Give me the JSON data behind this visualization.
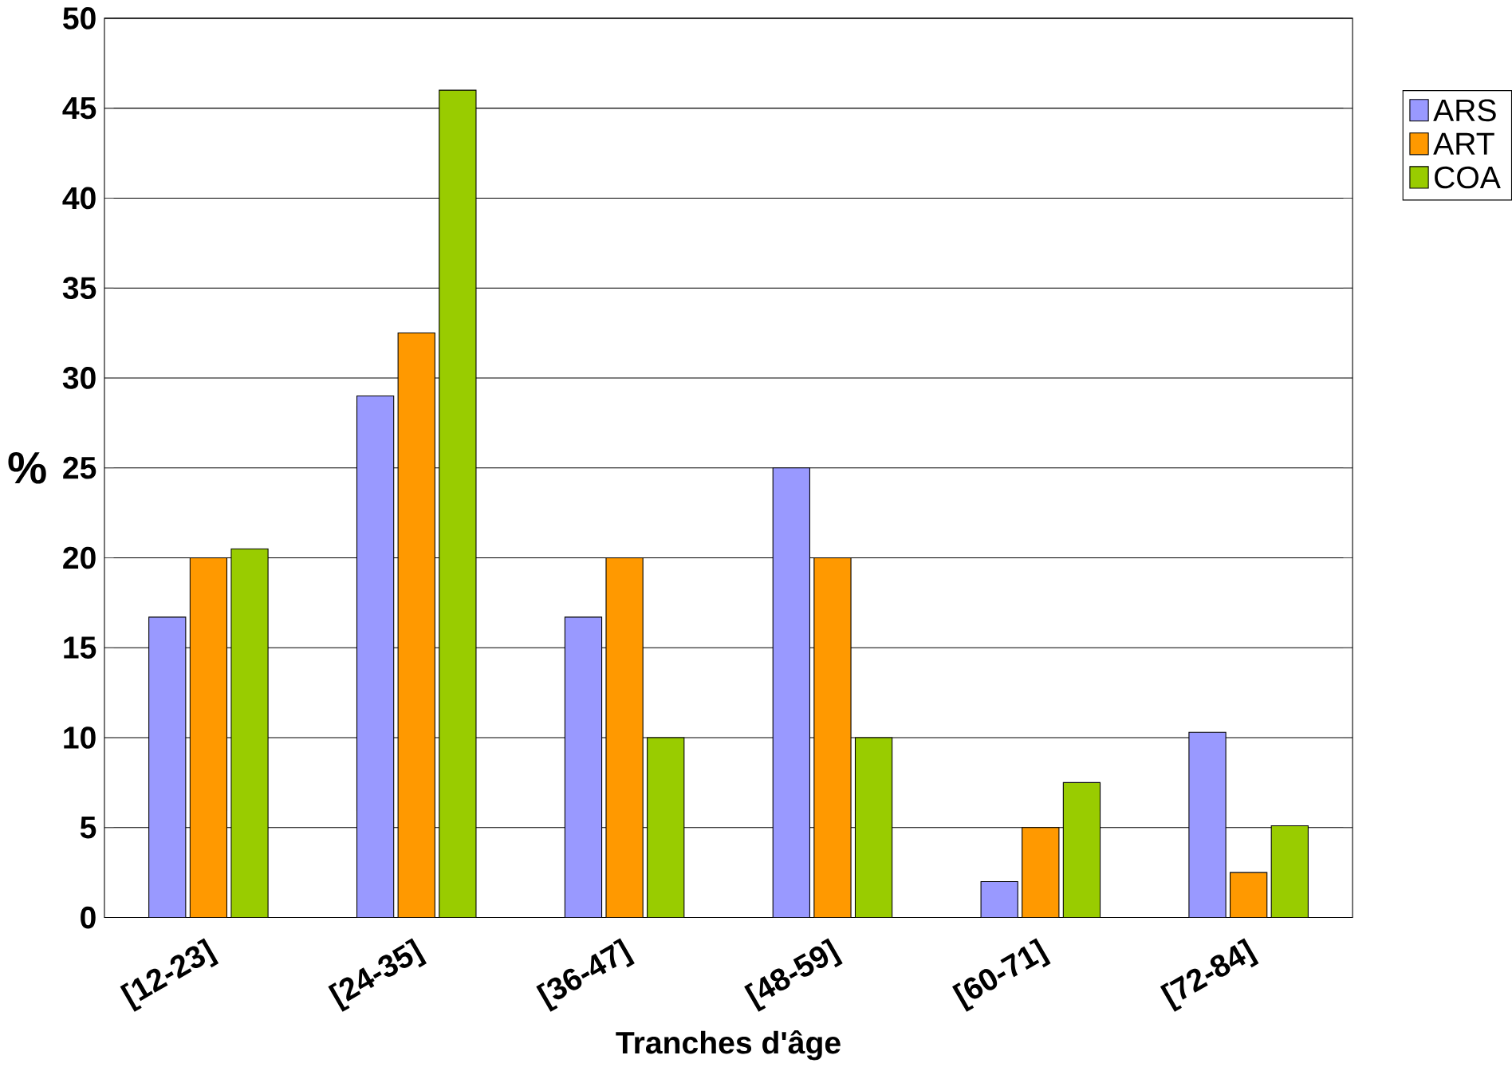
{
  "chart_data": {
    "type": "bar",
    "xlabel": "Tranches d'âge",
    "ylabel": "%",
    "categories": [
      "[12-23]",
      "[24-35]",
      "[36-47]",
      "[48-59]",
      "[60-71]",
      "[72-84]"
    ],
    "series": [
      {
        "name": "ARS",
        "color": "#9999ff",
        "values": [
          16.7,
          29,
          16.7,
          25,
          2,
          10.3
        ]
      },
      {
        "name": "ART",
        "color": "#ff9900",
        "values": [
          20,
          32.5,
          20,
          20,
          5,
          2.5
        ]
      },
      {
        "name": "COA",
        "color": "#99cc00",
        "values": [
          20.5,
          46,
          10,
          10,
          7.5,
          5.1
        ]
      }
    ],
    "ylim": [
      0,
      50
    ],
    "yticks": [
      0,
      5,
      10,
      15,
      20,
      25,
      30,
      35,
      40,
      45,
      50
    ],
    "grid": "y",
    "legend": "right"
  }
}
